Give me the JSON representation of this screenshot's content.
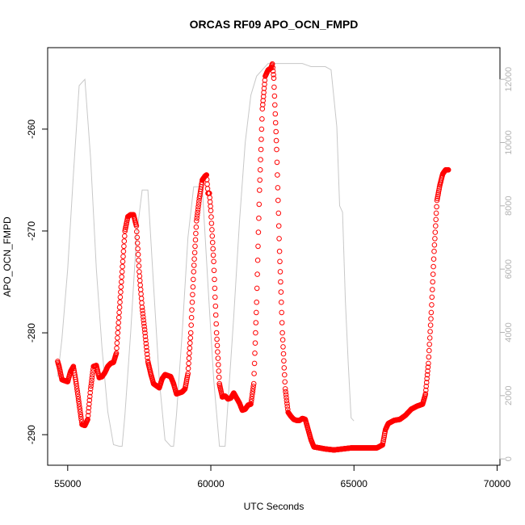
{
  "chart_data": {
    "type": "scatter",
    "title": "ORCAS RF09 APO_OCN_FMPD",
    "xlabel": "UTC Seconds",
    "ylabel": "APO_OCN_FMPD",
    "x_ticks": [
      55000,
      60000,
      65000,
      70000
    ],
    "y_ticks": [
      -290,
      -280,
      -270,
      -260
    ],
    "y2_ticks": [
      0,
      2000,
      4000,
      6000,
      8000,
      10000,
      12000
    ],
    "colors": {
      "points": "#ff0000",
      "altitude": "#c8c8c8",
      "axis": "#000000",
      "right_axis": "#b3b3b3"
    },
    "series": [
      {
        "values": [
          [
            54650,
            -282.8
          ],
          [
            54700,
            -283.3
          ],
          [
            54800,
            -284.6
          ],
          [
            54900,
            -284.7
          ],
          [
            55000,
            -284.8
          ],
          [
            55100,
            -283.8
          ],
          [
            55200,
            -283.3
          ],
          [
            55300,
            -285.0
          ],
          [
            55400,
            -287.0
          ],
          [
            55500,
            -289.0
          ],
          [
            55600,
            -289.1
          ],
          [
            55700,
            -288.5
          ],
          [
            55800,
            -285.5
          ],
          [
            55900,
            -283.3
          ],
          [
            56000,
            -283.2
          ],
          [
            56100,
            -284.4
          ],
          [
            56200,
            -284.3
          ],
          [
            56300,
            -283.9
          ],
          [
            56400,
            -283.3
          ],
          [
            56500,
            -283.0
          ],
          [
            56600,
            -282.9
          ],
          [
            56700,
            -282.0
          ],
          [
            56800,
            -278.0
          ],
          [
            56900,
            -274.0
          ],
          [
            57000,
            -270.0
          ],
          [
            57100,
            -268.6
          ],
          [
            57200,
            -268.4
          ],
          [
            57300,
            -268.4
          ],
          [
            57400,
            -269.5
          ],
          [
            57500,
            -274.0
          ],
          [
            57600,
            -277.5
          ],
          [
            57700,
            -280.0
          ],
          [
            57800,
            -282.8
          ],
          [
            57900,
            -284.0
          ],
          [
            58000,
            -285.0
          ],
          [
            58100,
            -285.2
          ],
          [
            58200,
            -285.4
          ],
          [
            58300,
            -284.5
          ],
          [
            58400,
            -284.1
          ],
          [
            58500,
            -284.2
          ],
          [
            58600,
            -284.3
          ],
          [
            58700,
            -285.0
          ],
          [
            58800,
            -286.0
          ],
          [
            58900,
            -285.9
          ],
          [
            59000,
            -285.8
          ],
          [
            59100,
            -285.5
          ],
          [
            59200,
            -284.0
          ],
          [
            59300,
            -280.0
          ],
          [
            59400,
            -274.0
          ],
          [
            59500,
            -269.0
          ],
          [
            59600,
            -266.8
          ],
          [
            59700,
            -265.0
          ],
          [
            59800,
            -264.6
          ],
          [
            59850,
            -264.5
          ],
          [
            59900,
            -266.3
          ],
          [
            59950,
            -266.3
          ],
          [
            60000,
            -268.0
          ],
          [
            60100,
            -273.0
          ],
          [
            60200,
            -280.0
          ],
          [
            60300,
            -285.0
          ],
          [
            60400,
            -286.3
          ],
          [
            60500,
            -286.2
          ],
          [
            60600,
            -286.5
          ],
          [
            60700,
            -286.4
          ],
          [
            60800,
            -285.9
          ],
          [
            60900,
            -286.4
          ],
          [
            61000,
            -286.9
          ],
          [
            61100,
            -287.6
          ],
          [
            61200,
            -287.5
          ],
          [
            61300,
            -287.1
          ],
          [
            61400,
            -287.0
          ],
          [
            61500,
            -285.0
          ],
          [
            61600,
            -277.0
          ],
          [
            61700,
            -266.0
          ],
          [
            61800,
            -258.0
          ],
          [
            61900,
            -254.8
          ],
          [
            62000,
            -254.2
          ],
          [
            62100,
            -254.0
          ],
          [
            62150,
            -253.6
          ],
          [
            62200,
            -255.0
          ],
          [
            62300,
            -262.0
          ],
          [
            62400,
            -272.0
          ],
          [
            62500,
            -280.0
          ],
          [
            62600,
            -285.5
          ],
          [
            62700,
            -287.8
          ],
          [
            62800,
            -288.2
          ],
          [
            62900,
            -288.5
          ],
          [
            63000,
            -288.6
          ],
          [
            63100,
            -288.6
          ],
          [
            63200,
            -288.4
          ],
          [
            63300,
            -288.5
          ],
          [
            63400,
            -289.5
          ],
          [
            63500,
            -290.5
          ],
          [
            63600,
            -291.2
          ],
          [
            63800,
            -291.3
          ],
          [
            64000,
            -291.4
          ],
          [
            64300,
            -291.5
          ],
          [
            64600,
            -291.4
          ],
          [
            64900,
            -291.3
          ],
          [
            65200,
            -291.3
          ],
          [
            65500,
            -291.3
          ],
          [
            65800,
            -291.3
          ],
          [
            66000,
            -291.0
          ],
          [
            66100,
            -289.5
          ],
          [
            66200,
            -288.9
          ],
          [
            66400,
            -288.6
          ],
          [
            66600,
            -288.5
          ],
          [
            66800,
            -288.1
          ],
          [
            67000,
            -287.5
          ],
          [
            67200,
            -287.2
          ],
          [
            67400,
            -287.0
          ],
          [
            67500,
            -286.0
          ],
          [
            67600,
            -283.0
          ],
          [
            67700,
            -278.0
          ],
          [
            67800,
            -272.0
          ],
          [
            67900,
            -267.0
          ],
          [
            68000,
            -265.5
          ],
          [
            68100,
            -264.4
          ],
          [
            68200,
            -264.0
          ],
          [
            68300,
            -264.0
          ]
        ]
      },
      {
        "axis": "right",
        "values": [
          [
            54650,
            2600
          ],
          [
            54800,
            3800
          ],
          [
            55000,
            6000
          ],
          [
            55200,
            9000
          ],
          [
            55400,
            11800
          ],
          [
            55600,
            12000
          ],
          [
            55800,
            9500
          ],
          [
            56000,
            6000
          ],
          [
            56200,
            3500
          ],
          [
            56400,
            1500
          ],
          [
            56600,
            450
          ],
          [
            56800,
            400
          ],
          [
            56900,
            400
          ],
          [
            57000,
            1400
          ],
          [
            57200,
            4000
          ],
          [
            57400,
            7000
          ],
          [
            57600,
            8500
          ],
          [
            57800,
            8500
          ],
          [
            58000,
            5500
          ],
          [
            58200,
            2500
          ],
          [
            58400,
            600
          ],
          [
            58600,
            400
          ],
          [
            58700,
            400
          ],
          [
            58800,
            1400
          ],
          [
            59000,
            4000
          ],
          [
            59200,
            7000
          ],
          [
            59400,
            8600
          ],
          [
            59700,
            8600
          ],
          [
            59900,
            5500
          ],
          [
            60100,
            2500
          ],
          [
            60300,
            400
          ],
          [
            60500,
            400
          ],
          [
            60600,
            1800
          ],
          [
            60800,
            4500
          ],
          [
            61000,
            7500
          ],
          [
            61200,
            10000
          ],
          [
            61400,
            11500
          ],
          [
            61600,
            12100
          ],
          [
            61800,
            12300
          ],
          [
            62000,
            12500
          ],
          [
            62300,
            12500
          ],
          [
            62600,
            12500
          ],
          [
            62900,
            12500
          ],
          [
            63200,
            12500
          ],
          [
            63500,
            12400
          ],
          [
            63800,
            12400
          ],
          [
            64000,
            12400
          ],
          [
            64200,
            12300
          ],
          [
            64400,
            10500
          ],
          [
            64500,
            8000
          ],
          [
            64600,
            7800
          ],
          [
            64700,
            5000
          ],
          [
            64800,
            3000
          ],
          [
            64900,
            1300
          ],
          [
            65000,
            1200
          ]
        ]
      }
    ],
    "xlim": [
      54300,
      70100
    ],
    "ylim": [
      -293,
      -252
    ],
    "y2lim": [
      -200,
      13000
    ],
    "grid": false,
    "legend": "none"
  }
}
